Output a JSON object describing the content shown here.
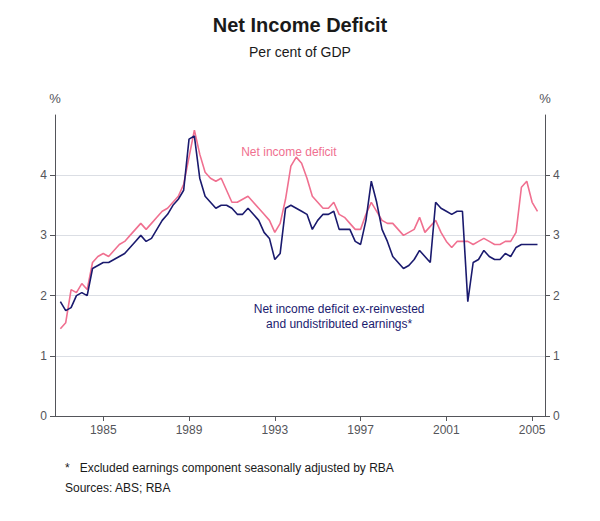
{
  "chart_data": {
    "type": "line",
    "title": "Net Income Deficit",
    "subtitle": "Per cent of GDP",
    "ylabel": "%",
    "y2label": "%",
    "footnotes": [
      "*   Excluded earnings component seasonally adjusted by RBA",
      "Sources: ABS; RBA"
    ],
    "xlim": [
      1982.75,
      2005.6
    ],
    "xticks": [
      1985,
      1989,
      1993,
      1997,
      2001,
      2005
    ],
    "ylim": [
      0,
      5
    ],
    "yticks": [
      0,
      1,
      2,
      3,
      4
    ],
    "y2lim": [
      0,
      5
    ],
    "y2ticks": [
      0,
      1,
      2,
      3,
      4
    ],
    "grid": true,
    "x": [
      1983.0,
      1983.25,
      1983.5,
      1983.75,
      1984.0,
      1984.25,
      1984.5,
      1984.75,
      1985.0,
      1985.25,
      1985.5,
      1985.75,
      1986.0,
      1986.25,
      1986.5,
      1986.75,
      1987.0,
      1987.25,
      1987.5,
      1987.75,
      1988.0,
      1988.25,
      1988.5,
      1988.75,
      1989.0,
      1989.25,
      1989.5,
      1989.75,
      1990.0,
      1990.25,
      1990.5,
      1990.75,
      1991.0,
      1991.25,
      1991.5,
      1991.75,
      1992.0,
      1992.25,
      1992.5,
      1992.75,
      1993.0,
      1993.25,
      1993.5,
      1993.75,
      1994.0,
      1994.25,
      1994.5,
      1994.75,
      1995.0,
      1995.25,
      1995.5,
      1995.75,
      1996.0,
      1996.25,
      1996.5,
      1996.75,
      1997.0,
      1997.25,
      1997.5,
      1997.75,
      1998.0,
      1998.25,
      1998.5,
      1998.75,
      1999.0,
      1999.25,
      1999.5,
      1999.75,
      2000.0,
      2000.25,
      2000.5,
      2000.75,
      2001.0,
      2001.25,
      2001.5,
      2001.75,
      2002.0,
      2002.25,
      2002.5,
      2002.75,
      2003.0,
      2003.25,
      2003.5,
      2003.75,
      2004.0,
      2004.25,
      2004.5,
      2004.75,
      2005.0,
      2005.25
    ],
    "series": [
      {
        "name": "Net income deficit",
        "color": "#f07090",
        "values": [
          1.45,
          1.55,
          2.1,
          2.05,
          2.2,
          2.1,
          2.55,
          2.65,
          2.7,
          2.65,
          2.75,
          2.85,
          2.9,
          3.0,
          3.1,
          3.2,
          3.1,
          3.2,
          3.3,
          3.4,
          3.45,
          3.55,
          3.65,
          3.85,
          4.3,
          4.75,
          4.35,
          4.05,
          3.95,
          3.9,
          3.95,
          3.75,
          3.55,
          3.55,
          3.6,
          3.65,
          3.55,
          3.45,
          3.35,
          3.25,
          3.05,
          3.2,
          3.6,
          4.15,
          4.3,
          4.2,
          3.95,
          3.65,
          3.55,
          3.45,
          3.45,
          3.55,
          3.35,
          3.3,
          3.2,
          3.1,
          3.1,
          3.35,
          3.55,
          3.4,
          3.25,
          3.2,
          3.2,
          3.1,
          3.0,
          3.05,
          3.1,
          3.3,
          3.05,
          3.15,
          3.25,
          3.05,
          2.9,
          2.8,
          2.9,
          2.9,
          2.9,
          2.85,
          2.9,
          2.95,
          2.9,
          2.85,
          2.85,
          2.9,
          2.9,
          3.05,
          3.8,
          3.9,
          3.55,
          3.4
        ]
      },
      {
        "name": "Net income deficit ex-reinvested\nand undistributed earnings*",
        "color": "#1a1a6e",
        "values": [
          1.9,
          1.75,
          1.8,
          2.0,
          2.05,
          2.0,
          2.45,
          2.5,
          2.55,
          2.55,
          2.6,
          2.65,
          2.7,
          2.8,
          2.9,
          3.0,
          2.9,
          2.95,
          3.1,
          3.25,
          3.35,
          3.5,
          3.6,
          3.75,
          4.6,
          4.65,
          3.95,
          3.65,
          3.55,
          3.45,
          3.5,
          3.5,
          3.45,
          3.35,
          3.35,
          3.45,
          3.35,
          3.25,
          3.05,
          2.95,
          2.6,
          2.7,
          3.45,
          3.5,
          3.45,
          3.4,
          3.35,
          3.1,
          3.25,
          3.35,
          3.35,
          3.4,
          3.1,
          3.1,
          3.1,
          2.9,
          2.85,
          3.25,
          3.9,
          3.55,
          3.1,
          2.9,
          2.65,
          2.55,
          2.45,
          2.5,
          2.6,
          2.75,
          2.65,
          2.55,
          3.55,
          3.45,
          3.4,
          3.35,
          3.4,
          3.4,
          1.9,
          2.55,
          2.6,
          2.75,
          2.65,
          2.6,
          2.6,
          2.7,
          2.65,
          2.8,
          2.85,
          2.85,
          2.85,
          2.85
        ]
      }
    ]
  }
}
